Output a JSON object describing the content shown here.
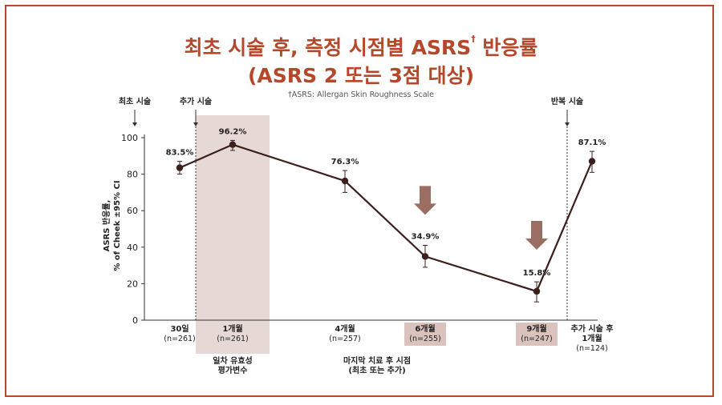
{
  "title": {
    "line1_main": "최초 시술 후, 측정 시점별 ASRS",
    "line1_sup": "†",
    "line1_end": "반응률",
    "line2": "(ASRS 2 또는 3점 대상)"
  },
  "footnote": {
    "mark": "†",
    "text": "ASRS: Allergan Skin Roughness Scale"
  },
  "markers": {
    "initial": "최초 시술",
    "touchup": "추가 시술",
    "repeat": "반복 시술"
  },
  "notes": {
    "primary_endpoint_1": "일차 유효성",
    "primary_endpoint_2": "평가변수",
    "last_treatment_1": "마지막 치료 후 시점",
    "last_treatment_2": "(최초 또는 추가)"
  },
  "colors": {
    "title": "#b5472a",
    "line": "#3b1f1b",
    "shade": "#e6d9d5",
    "arrow": "#9a6e63",
    "box": "#d9c3bc"
  },
  "chart_data": {
    "type": "line",
    "title": "최초 시술 후, 측정 시점별 ASRS 반응률",
    "ylabel_line1": "ASRS 반응률,",
    "ylabel_line2": "% of Cheek ±95% CI",
    "ylim": [
      0,
      100
    ],
    "yticks": [
      0,
      20,
      40,
      60,
      80,
      100
    ],
    "grid": false,
    "points": [
      {
        "label": "30일",
        "n": "(n=261)",
        "value": 83.5,
        "value_label": "83.5%",
        "ci_low": 80.0,
        "ci_high": 87.0,
        "highlight": false,
        "arrow": false
      },
      {
        "label": "1개월",
        "n": "(n=261)",
        "value": 96.2,
        "value_label": "96.2%",
        "ci_low": 93.0,
        "ci_high": 98.5,
        "highlight": false,
        "arrow": false
      },
      {
        "label": "4개월",
        "n": "(n=257)",
        "value": 76.3,
        "value_label": "76.3%",
        "ci_low": 70.0,
        "ci_high": 82.0,
        "highlight": false,
        "arrow": false
      },
      {
        "label": "6개월",
        "n": "(n=255)",
        "value": 34.9,
        "value_label": "34.9%",
        "ci_low": 29.0,
        "ci_high": 41.0,
        "highlight": true,
        "arrow": true
      },
      {
        "label": "9개월",
        "n": "(n=247)",
        "value": 15.8,
        "value_label": "15.8%",
        "ci_low": 10.0,
        "ci_high": 21.0,
        "highlight": true,
        "arrow": true
      },
      {
        "label_lines": [
          "추가 시술 후",
          "1개월"
        ],
        "n": "(n=124)",
        "value": 87.1,
        "value_label": "87.1%",
        "ci_low": 81.0,
        "ci_high": 92.5,
        "highlight": false,
        "arrow": false
      }
    ]
  }
}
